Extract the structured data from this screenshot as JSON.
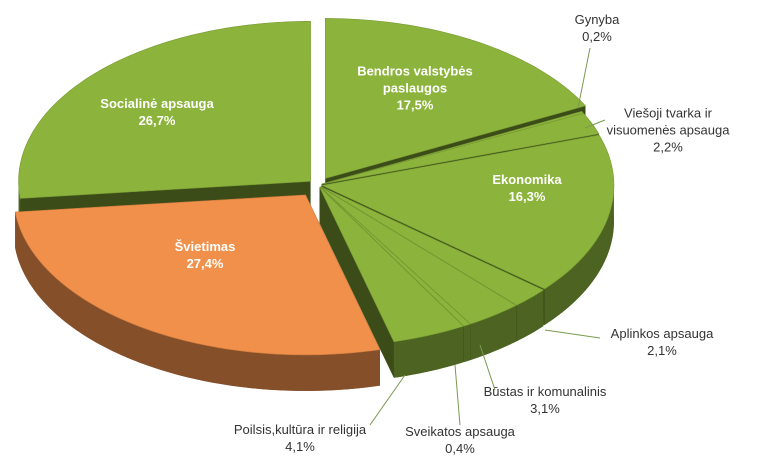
{
  "chart_data": {
    "type": "pie",
    "categories": [
      "Bendros valstybės paslaugos",
      "Gynyba",
      "Viešoji tvarka ir visuomenės apsauga",
      "Ekonomika",
      "Aplinkos apsauga",
      "Būstas ir komunalinis",
      "Sveikatos apsauga",
      "Poilsis,kultūra ir religija",
      "Švietimas",
      "Socialinė apsauga"
    ],
    "values": [
      17.5,
      0.2,
      2.2,
      16.3,
      2.1,
      3.1,
      0.4,
      4.1,
      27.4,
      26.7
    ],
    "value_labels": [
      "17,5%",
      "0,2%",
      "2,2%",
      "16,3%",
      "2,1%",
      "3,1%",
      "0,4%",
      "4,1%",
      "27,4%",
      "26,7%"
    ],
    "colors": [
      "#8cb43c",
      "#8cb43c",
      "#8cb43c",
      "#8cb43c",
      "#8cb43c",
      "#8cb43c",
      "#8cb43c",
      "#8cb43c",
      "#f0904a",
      "#8cb43c"
    ]
  }
}
